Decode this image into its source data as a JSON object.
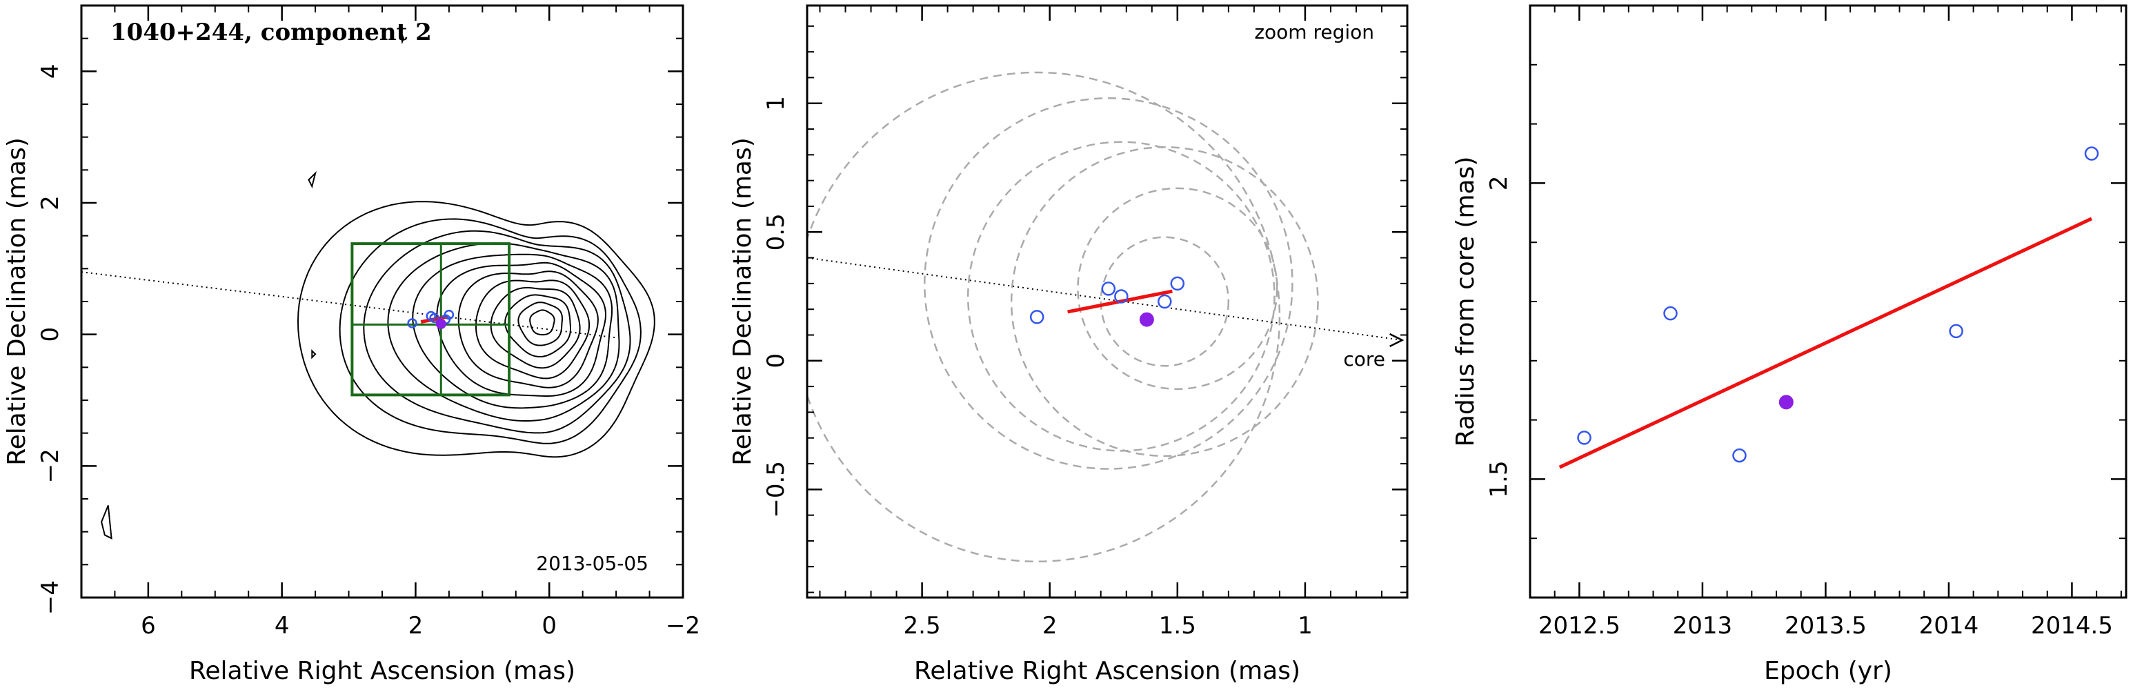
{
  "chart_data": [
    {
      "type": "contour",
      "title": "1040+244, component 2",
      "xlabel": "Relative Right Ascension (mas)",
      "ylabel": "Relative Declination (mas)",
      "date_label": "2013-05-05",
      "xlim": [
        7,
        -2
      ],
      "ylim": [
        -4,
        5
      ],
      "xticks": [
        6,
        4,
        2,
        0,
        -2
      ],
      "yticks": [
        -4,
        -2,
        0,
        2,
        4
      ],
      "grid": false,
      "core": [
        0.1,
        0.2
      ],
      "contour_levels": [
        0.1,
        0.2,
        0.3,
        0.4,
        0.5,
        0.6,
        0.7,
        0.8,
        0.9,
        1.0,
        1.1,
        1.25
      ],
      "jet_line": {
        "x": [
          7,
          -1
        ],
        "y": [
          0.95,
          -0.05
        ]
      },
      "zoom_box": {
        "x": [
          2.95,
          0.6
        ],
        "y": [
          -0.92,
          1.38
        ]
      },
      "zoom_box_lines": {
        "x": 1.62,
        "y": 0.15
      },
      "points_open": {
        "x": [
          2.05,
          1.77,
          1.72,
          1.55,
          1.5
        ],
        "y": [
          0.17,
          0.28,
          0.25,
          0.23,
          0.3
        ]
      },
      "point_filled": {
        "x": 1.62,
        "y": 0.16
      },
      "fit_line": {
        "x": [
          1.92,
          1.52
        ],
        "y": [
          0.19,
          0.27
        ]
      },
      "islands": [
        {
          "x": [
            6.55,
            6.65,
            6.7,
            6.6,
            6.55
          ],
          "y": [
            -3.1,
            -3.05,
            -2.85,
            -2.6,
            -3.1
          ]
        },
        {
          "x": [
            3.6,
            3.5,
            3.55,
            3.6
          ],
          "y": [
            2.35,
            2.45,
            2.25,
            2.35
          ]
        },
        {
          "x": [
            3.55,
            3.5,
            3.55
          ],
          "y": [
            -0.25,
            -0.3,
            -0.35
          ]
        },
        {
          "x": [
            2.22,
            2.18,
            2.2
          ],
          "y": [
            4.6,
            4.5,
            4.45
          ]
        }
      ]
    },
    {
      "type": "scatter",
      "title": "zoom region",
      "xlabel": "Relative Right Ascension (mas)",
      "ylabel": "Relative Declination (mas)",
      "xlim": [
        2.95,
        0.6
      ],
      "ylim": [
        -0.92,
        1.38
      ],
      "xticks": [
        2.5,
        2,
        1.5,
        1
      ],
      "yticks": [
        -0.5,
        0,
        0.5,
        1
      ],
      "grid": false,
      "core_label": "core",
      "jet_line": {
        "x": [
          2.95,
          0.62
        ],
        "y": [
          0.4,
          0.08
        ]
      },
      "points_open": {
        "x": [
          2.05,
          1.77,
          1.72,
          1.55,
          1.5
        ],
        "y": [
          0.17,
          0.28,
          0.25,
          0.23,
          0.3
        ]
      },
      "point_filled": {
        "x": 1.62,
        "y": 0.16
      },
      "fit_line": {
        "x": [
          1.93,
          1.52
        ],
        "y": [
          0.19,
          0.27
        ]
      },
      "circles": [
        {
          "cx": 2.05,
          "cy": 0.17,
          "r": 0.95
        },
        {
          "cx": 1.77,
          "cy": 0.3,
          "r": 0.72
        },
        {
          "cx": 1.72,
          "cy": 0.25,
          "r": 0.6
        },
        {
          "cx": 1.55,
          "cy": 0.23,
          "r": 0.6
        },
        {
          "cx": 1.55,
          "cy": 0.23,
          "r": 0.25
        },
        {
          "cx": 1.5,
          "cy": 0.28,
          "r": 0.39
        }
      ]
    },
    {
      "type": "scatter",
      "xlabel": "Epoch (yr)",
      "ylabel": "Radius from core (mas)",
      "xlim": [
        2012.3,
        2014.72
      ],
      "ylim": [
        1.3,
        2.3
      ],
      "xticks": [
        2012.5,
        2013,
        2013.5,
        2014,
        2014.5
      ],
      "xtick_labels": [
        "2012.5",
        "2013",
        "2013.5",
        "2014",
        "2014.5"
      ],
      "yticks": [
        1.5,
        2
      ],
      "ytick_labels": [
        "1.5",
        "2"
      ],
      "grid": false,
      "points_open": {
        "x": [
          2012.52,
          2012.87,
          2013.15,
          2014.03,
          2014.58
        ],
        "y": [
          1.57,
          1.78,
          1.54,
          1.75,
          2.05
        ]
      },
      "point_filled": {
        "x": 2013.34,
        "y": 1.63
      },
      "fit_line": {
        "x": [
          2012.42,
          2014.58
        ],
        "y": [
          1.52,
          1.94
        ]
      }
    }
  ],
  "colors": {
    "open_point": "#3355ee",
    "filled_point": "#8a1fe6",
    "fit_line": "#ee1111",
    "zoom_box": "#1a6b1a",
    "dashed_circle": "#aaaaaa",
    "contour": "#000000"
  }
}
